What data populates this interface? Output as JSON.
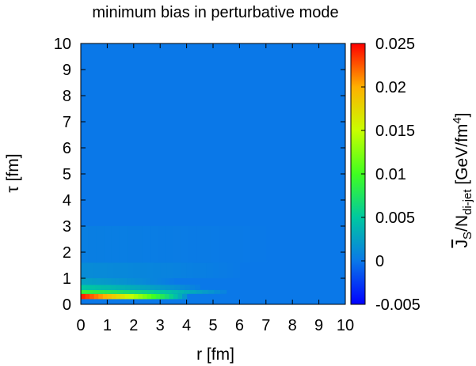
{
  "chart_data": {
    "type": "heatmap",
    "title": "minimum bias in perturbative mode",
    "xlabel": "r [fm]",
    "ylabel": "τ [fm]",
    "colorbar_label": {
      "main": "J",
      "sub1": "S",
      "slash": "/N",
      "sub2": "di-jet",
      "unit": " [GeV/fm",
      "sup": "4",
      "close": "]"
    },
    "xlim": [
      0,
      10
    ],
    "ylim": [
      0,
      10
    ],
    "xticks": [
      "0",
      "1",
      "2",
      "3",
      "4",
      "5",
      "6",
      "7",
      "8",
      "9",
      "10"
    ],
    "yticks": [
      "0",
      "1",
      "2",
      "3",
      "4",
      "5",
      "6",
      "7",
      "8",
      "9",
      "10"
    ],
    "zlim": [
      -0.005,
      0.025
    ],
    "zticks": [
      "-0.005",
      "0",
      "0.005",
      "0.01",
      "0.015",
      "0.02",
      "0.025"
    ],
    "zticks_values": [
      -0.005,
      0,
      0.005,
      0.01,
      0.015,
      0.02,
      0.025
    ],
    "background_value": 0,
    "grid": false,
    "colormap": [
      "#0000ff",
      "#00a0ff",
      "#00ff40",
      "#ffff00",
      "#ff8000",
      "#ff0000"
    ],
    "hot_region": {
      "description_of_data": "source concentrated at small tau, spreading along r",
      "rows": [
        {
          "tau": [
            0.2,
            0.4
          ],
          "r_end": 4.0,
          "peak": 0.024
        },
        {
          "tau": [
            0.4,
            0.55
          ],
          "r_end": 5.5,
          "peak": 0.009
        },
        {
          "tau": [
            0.55,
            0.75
          ],
          "r_end": 4.5,
          "peak": 0.005
        },
        {
          "tau": [
            0.75,
            1.0
          ],
          "r_end": 3.5,
          "peak": 0.0025
        },
        {
          "tau": [
            1.0,
            1.6
          ],
          "r_end": 6.0,
          "peak": 0.0012
        },
        {
          "tau": [
            1.6,
            3.0
          ],
          "r_end": 7.0,
          "peak": 0.0004
        }
      ]
    }
  }
}
